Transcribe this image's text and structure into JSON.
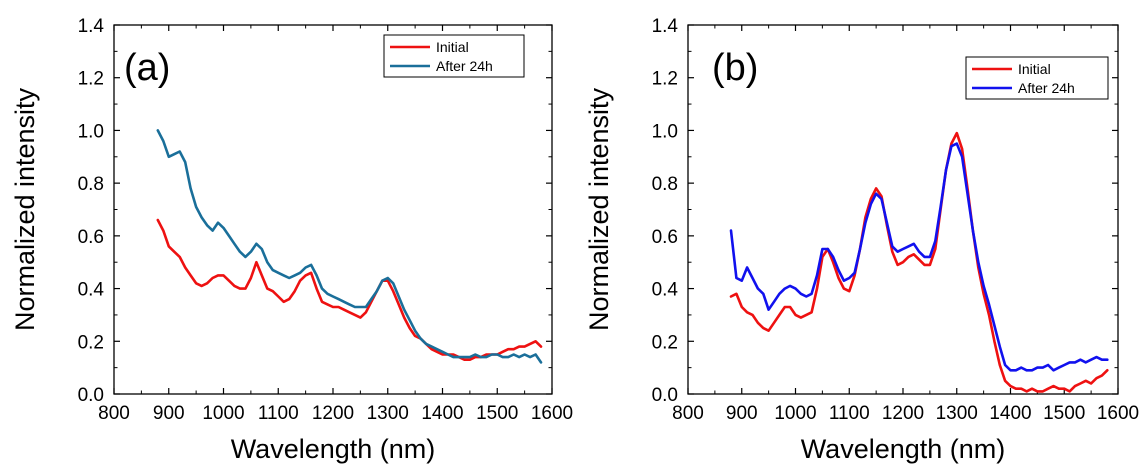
{
  "chart_data": [
    {
      "type": "line",
      "panel_label": "(a)",
      "xlabel": "Wavelength (nm)",
      "ylabel": "Normalized intensity",
      "xlim": [
        800,
        1600
      ],
      "ylim": [
        0.0,
        1.4
      ],
      "xticks": [
        "800",
        "900",
        "1000",
        "1100",
        "1200",
        "1300",
        "1400",
        "1500",
        "1600"
      ],
      "yticks": [
        "0.0",
        "0.2",
        "0.4",
        "0.6",
        "0.8",
        "1.0",
        "1.2",
        "1.4"
      ],
      "legend": "top-right",
      "grid": false,
      "series": [
        {
          "name": "Initial",
          "color": "#ee1111",
          "x": [
            880,
            890,
            900,
            910,
            920,
            930,
            940,
            950,
            960,
            970,
            980,
            990,
            1000,
            1010,
            1020,
            1030,
            1040,
            1050,
            1060,
            1070,
            1080,
            1090,
            1100,
            1110,
            1120,
            1130,
            1140,
            1150,
            1160,
            1170,
            1180,
            1190,
            1200,
            1210,
            1220,
            1230,
            1240,
            1250,
            1260,
            1270,
            1280,
            1290,
            1300,
            1310,
            1320,
            1330,
            1340,
            1350,
            1360,
            1370,
            1380,
            1390,
            1400,
            1410,
            1420,
            1430,
            1440,
            1450,
            1460,
            1470,
            1480,
            1490,
            1500,
            1510,
            1520,
            1530,
            1540,
            1550,
            1560,
            1570,
            1580
          ],
          "y": [
            0.66,
            0.62,
            0.56,
            0.54,
            0.52,
            0.48,
            0.45,
            0.42,
            0.41,
            0.42,
            0.44,
            0.45,
            0.45,
            0.43,
            0.41,
            0.4,
            0.4,
            0.44,
            0.5,
            0.45,
            0.4,
            0.39,
            0.37,
            0.35,
            0.36,
            0.39,
            0.43,
            0.45,
            0.46,
            0.4,
            0.35,
            0.34,
            0.33,
            0.33,
            0.32,
            0.31,
            0.3,
            0.29,
            0.31,
            0.35,
            0.39,
            0.43,
            0.43,
            0.39,
            0.34,
            0.29,
            0.25,
            0.22,
            0.21,
            0.19,
            0.17,
            0.16,
            0.15,
            0.15,
            0.15,
            0.14,
            0.13,
            0.13,
            0.14,
            0.14,
            0.15,
            0.15,
            0.15,
            0.16,
            0.17,
            0.17,
            0.18,
            0.18,
            0.19,
            0.2,
            0.18
          ]
        },
        {
          "name": "After 24h",
          "color": "#1a6f9a",
          "x": [
            880,
            890,
            900,
            910,
            920,
            930,
            940,
            950,
            960,
            970,
            980,
            990,
            1000,
            1010,
            1020,
            1030,
            1040,
            1050,
            1060,
            1070,
            1080,
            1090,
            1100,
            1110,
            1120,
            1130,
            1140,
            1150,
            1160,
            1170,
            1180,
            1190,
            1200,
            1210,
            1220,
            1230,
            1240,
            1250,
            1260,
            1270,
            1280,
            1290,
            1300,
            1310,
            1320,
            1330,
            1340,
            1350,
            1360,
            1370,
            1380,
            1390,
            1400,
            1410,
            1420,
            1430,
            1440,
            1450,
            1460,
            1470,
            1480,
            1490,
            1500,
            1510,
            1520,
            1530,
            1540,
            1550,
            1560,
            1570,
            1580
          ],
          "y": [
            1.0,
            0.96,
            0.9,
            0.91,
            0.92,
            0.88,
            0.78,
            0.71,
            0.67,
            0.64,
            0.62,
            0.65,
            0.63,
            0.6,
            0.57,
            0.54,
            0.52,
            0.54,
            0.57,
            0.55,
            0.5,
            0.47,
            0.46,
            0.45,
            0.44,
            0.45,
            0.46,
            0.48,
            0.49,
            0.45,
            0.4,
            0.38,
            0.37,
            0.36,
            0.35,
            0.34,
            0.33,
            0.33,
            0.33,
            0.36,
            0.39,
            0.43,
            0.44,
            0.42,
            0.37,
            0.32,
            0.28,
            0.24,
            0.21,
            0.19,
            0.18,
            0.17,
            0.16,
            0.15,
            0.14,
            0.14,
            0.14,
            0.14,
            0.15,
            0.14,
            0.14,
            0.15,
            0.15,
            0.14,
            0.14,
            0.15,
            0.14,
            0.15,
            0.14,
            0.15,
            0.12
          ]
        }
      ]
    },
    {
      "type": "line",
      "panel_label": "(b)",
      "xlabel": "Wavelength (nm)",
      "ylabel": "Normalized intensity",
      "xlim": [
        800,
        1600
      ],
      "ylim": [
        0.0,
        1.4
      ],
      "xticks": [
        "800",
        "900",
        "1000",
        "1100",
        "1200",
        "1300",
        "1400",
        "1500",
        "1600"
      ],
      "yticks": [
        "0.0",
        "0.2",
        "0.4",
        "0.6",
        "0.8",
        "1.0",
        "1.2",
        "1.4"
      ],
      "legend": "top-right",
      "grid": false,
      "series": [
        {
          "name": "Initial",
          "color": "#ee1111",
          "x": [
            880,
            890,
            900,
            910,
            920,
            930,
            940,
            950,
            960,
            970,
            980,
            990,
            1000,
            1010,
            1020,
            1030,
            1040,
            1050,
            1060,
            1070,
            1080,
            1090,
            1100,
            1110,
            1120,
            1130,
            1140,
            1150,
            1160,
            1170,
            1180,
            1190,
            1200,
            1210,
            1220,
            1230,
            1240,
            1250,
            1260,
            1270,
            1280,
            1290,
            1300,
            1310,
            1320,
            1330,
            1340,
            1350,
            1360,
            1370,
            1380,
            1390,
            1400,
            1410,
            1420,
            1430,
            1440,
            1450,
            1460,
            1470,
            1480,
            1490,
            1500,
            1510,
            1520,
            1530,
            1540,
            1550,
            1560,
            1570,
            1580
          ],
          "y": [
            0.37,
            0.38,
            0.33,
            0.31,
            0.3,
            0.27,
            0.25,
            0.24,
            0.27,
            0.3,
            0.33,
            0.33,
            0.3,
            0.29,
            0.3,
            0.31,
            0.4,
            0.52,
            0.55,
            0.5,
            0.44,
            0.4,
            0.39,
            0.45,
            0.55,
            0.67,
            0.74,
            0.78,
            0.75,
            0.64,
            0.54,
            0.49,
            0.5,
            0.52,
            0.53,
            0.51,
            0.49,
            0.49,
            0.55,
            0.7,
            0.85,
            0.95,
            0.99,
            0.93,
            0.78,
            0.62,
            0.48,
            0.38,
            0.3,
            0.2,
            0.11,
            0.05,
            0.03,
            0.02,
            0.02,
            0.01,
            0.02,
            0.01,
            0.01,
            0.02,
            0.03,
            0.02,
            0.02,
            0.01,
            0.03,
            0.04,
            0.05,
            0.04,
            0.06,
            0.07,
            0.09
          ]
        },
        {
          "name": "After 24h",
          "color": "#1111ee",
          "x": [
            880,
            890,
            900,
            910,
            920,
            930,
            940,
            950,
            960,
            970,
            980,
            990,
            1000,
            1010,
            1020,
            1030,
            1040,
            1050,
            1060,
            1070,
            1080,
            1090,
            1100,
            1110,
            1120,
            1130,
            1140,
            1150,
            1160,
            1170,
            1180,
            1190,
            1200,
            1210,
            1220,
            1230,
            1240,
            1250,
            1260,
            1270,
            1280,
            1290,
            1300,
            1310,
            1320,
            1330,
            1340,
            1350,
            1360,
            1370,
            1380,
            1390,
            1400,
            1410,
            1420,
            1430,
            1440,
            1450,
            1460,
            1470,
            1480,
            1490,
            1500,
            1510,
            1520,
            1530,
            1540,
            1550,
            1560,
            1570,
            1580
          ],
          "y": [
            0.62,
            0.44,
            0.43,
            0.48,
            0.44,
            0.4,
            0.38,
            0.32,
            0.35,
            0.38,
            0.4,
            0.41,
            0.4,
            0.38,
            0.37,
            0.38,
            0.45,
            0.55,
            0.55,
            0.52,
            0.47,
            0.43,
            0.44,
            0.46,
            0.55,
            0.65,
            0.72,
            0.76,
            0.74,
            0.65,
            0.56,
            0.54,
            0.55,
            0.56,
            0.57,
            0.54,
            0.52,
            0.52,
            0.58,
            0.71,
            0.85,
            0.94,
            0.95,
            0.9,
            0.76,
            0.62,
            0.5,
            0.41,
            0.34,
            0.26,
            0.18,
            0.11,
            0.09,
            0.09,
            0.1,
            0.09,
            0.09,
            0.1,
            0.1,
            0.11,
            0.09,
            0.1,
            0.11,
            0.12,
            0.12,
            0.13,
            0.12,
            0.13,
            0.14,
            0.13,
            0.13
          ]
        }
      ]
    }
  ]
}
